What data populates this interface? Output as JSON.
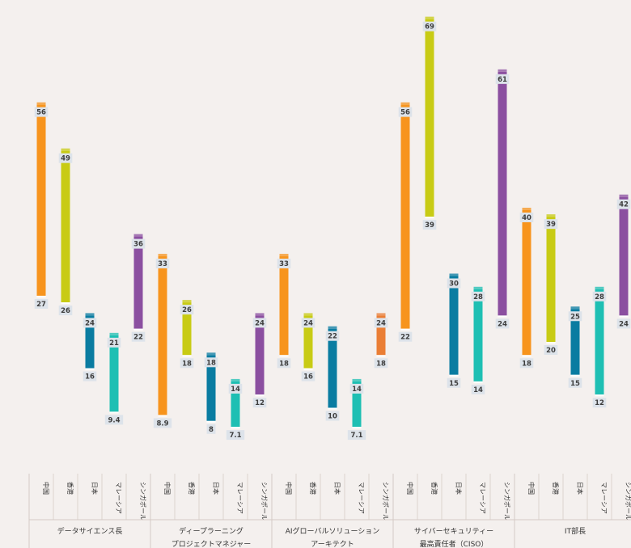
{
  "chart_data": {
    "type": "bar",
    "subtype": "floating-range",
    "regions": [
      "中国",
      "香港",
      "日本",
      "マレーシア",
      "シンガポール"
    ],
    "region_colors": [
      "#f7941d",
      "#c8cb14",
      "#0a7ca1",
      "#1ebfb3",
      "#8b4fa0"
    ],
    "groups": [
      {
        "label": [
          "データサイエンス長"
        ],
        "bars": [
          {
            "category": "中国",
            "high": 56,
            "low": 27,
            "high_label": "56",
            "low_label": "27"
          },
          {
            "category": "香港",
            "high": 49,
            "low": 26,
            "high_label": "49",
            "low_label": "26"
          },
          {
            "category": "日本",
            "high": 24,
            "low": 16,
            "high_label": "24",
            "low_label": "16"
          },
          {
            "category": "マレーシア",
            "high": 21,
            "low": 9.4,
            "high_label": "21",
            "low_label": "9.4"
          },
          {
            "category": "シンガポール",
            "high": 36,
            "low": 22,
            "high_label": "36",
            "low_label": "22"
          }
        ]
      },
      {
        "label": [
          "ディープラーニング",
          "プロジェクトマネジャー"
        ],
        "bars": [
          {
            "category": "中国",
            "high": 33,
            "low": 8.9,
            "high_label": "33",
            "low_label": "8.9"
          },
          {
            "category": "香港",
            "high": 26,
            "low": 18,
            "high_label": "26",
            "low_label": "18"
          },
          {
            "category": "日本",
            "high": 18,
            "low": 8,
            "high_label": "18",
            "low_label": "8"
          },
          {
            "category": "マレーシア",
            "high": 14,
            "low": 7.1,
            "high_label": "14",
            "low_label": "7.1"
          },
          {
            "category": "シンガポール",
            "high": 24,
            "low": 12,
            "high_label": "24",
            "low_label": "12"
          }
        ]
      },
      {
        "label": [
          "AIグローバルソリューション",
          "アーキテクト"
        ],
        "bars": [
          {
            "category": "中国",
            "high": 33,
            "low": 18,
            "high_label": "33",
            "low_label": "18"
          },
          {
            "category": "香港",
            "high": 24,
            "low": 16,
            "high_label": "24",
            "low_label": "16"
          },
          {
            "category": "日本",
            "high": 22,
            "low": 10,
            "high_label": "22",
            "low_label": "10"
          },
          {
            "category": "マレーシア",
            "high": 14,
            "low": 7.1,
            "high_label": "14",
            "low_label": "7.1"
          },
          {
            "category": "シンガポール",
            "high": 24,
            "low": 18,
            "high_label": "24",
            "low_label": "18",
            "color": "#ea7e35"
          }
        ]
      },
      {
        "label": [
          "サイバーセキュリティー",
          "最高責任者（CISO）"
        ],
        "bars": [
          {
            "category": "中国",
            "high": 56,
            "low": 22,
            "high_label": "56",
            "low_label": "22"
          },
          {
            "category": "香港",
            "high": 69,
            "low": 39,
            "high_label": "69",
            "low_label": "39"
          },
          {
            "category": "日本",
            "high": 30,
            "low": 15,
            "high_label": "30",
            "low_label": "15"
          },
          {
            "category": "マレーシア",
            "high": 28,
            "low": 14,
            "high_label": "28",
            "low_label": "14"
          },
          {
            "category": "シンガポール",
            "high": 61,
            "low": 24,
            "high_label": "61",
            "low_label": "24"
          }
        ]
      },
      {
        "label": [
          "IT部長"
        ],
        "bars": [
          {
            "category": "中国",
            "high": 40,
            "low": 18,
            "high_label": "40",
            "low_label": "18"
          },
          {
            "category": "香港",
            "high": 39,
            "low": 20,
            "high_label": "39",
            "low_label": "20"
          },
          {
            "category": "日本",
            "high": 25,
            "low": 15,
            "high_label": "25",
            "low_label": "15"
          },
          {
            "category": "マレーシア",
            "high": 28,
            "low": 12,
            "high_label": "28",
            "low_label": "12"
          },
          {
            "category": "シンガポール",
            "high": 42,
            "low": 24,
            "high_label": "42",
            "low_label": "24"
          }
        ]
      }
    ],
    "ylim": [
      0,
      70
    ],
    "grid": false,
    "legend": "none"
  }
}
